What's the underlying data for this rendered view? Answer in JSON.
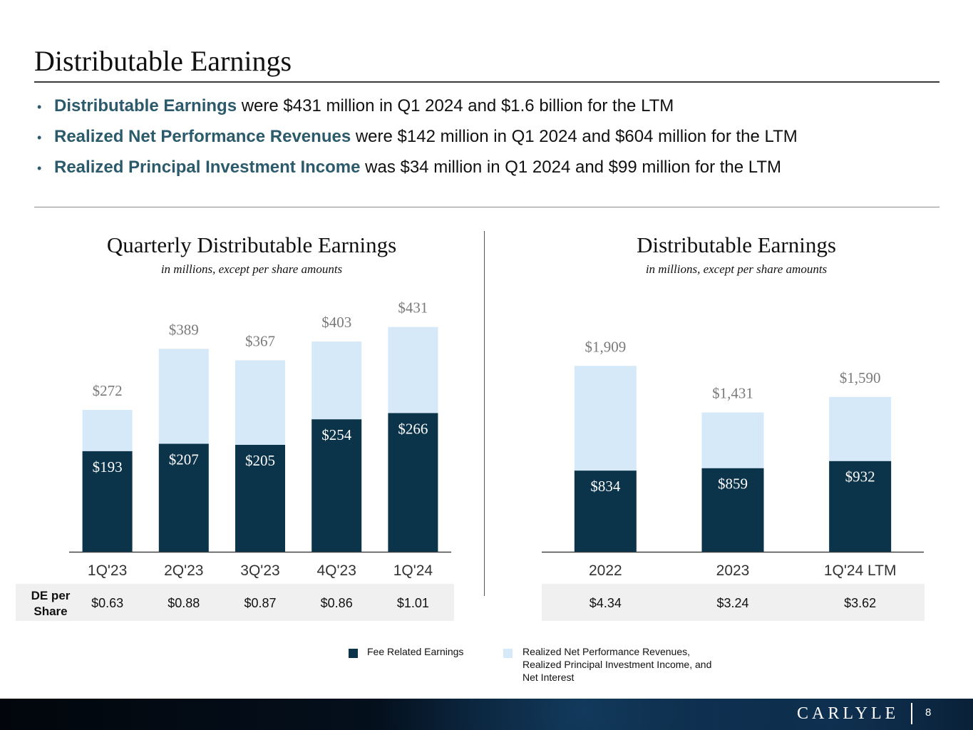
{
  "title": "Distributable Earnings",
  "bullets": [
    {
      "highlight": "Distributable Earnings",
      "text": " were $431 million in Q1 2024 and $1.6 billion for the LTM"
    },
    {
      "highlight": "Realized Net Performance Revenues",
      "text": " were $142 million in Q1 2024 and $604 million for the LTM"
    },
    {
      "highlight": "Realized Principal Investment Income",
      "text": " was $34 million in Q1 2024 and $99 million for the LTM"
    }
  ],
  "colors": {
    "fre": "#0b3349",
    "other": "#d6e9f8",
    "accent": "#2b5a6b",
    "total_label": "#7a7a7a"
  },
  "share_label": "DE per Share",
  "chart_data": [
    {
      "type": "bar",
      "stacked": true,
      "title": "Quarterly Distributable Earnings",
      "subtitle": "in millions, except per share amounts",
      "categories": [
        "1Q'23",
        "2Q'23",
        "3Q'23",
        "4Q'23",
        "1Q'24"
      ],
      "series": [
        {
          "name": "Fee Related Earnings",
          "values": [
            193,
            207,
            205,
            254,
            266
          ]
        },
        {
          "name": "Realized Net Performance Revenues, Realized Principal Investment Income, and Net Interest",
          "values": [
            79,
            182,
            162,
            149,
            165
          ]
        }
      ],
      "fre_labels": [
        "$193",
        "$207",
        "$205",
        "$254",
        "$266"
      ],
      "totals": [
        272,
        389,
        367,
        403,
        431
      ],
      "total_labels": [
        "$272",
        "$389",
        "$367",
        "$403",
        "$431"
      ],
      "de_per_share": [
        "$0.63",
        "$0.88",
        "$0.87",
        "$0.86",
        "$1.01"
      ],
      "ylim": [
        0,
        440
      ]
    },
    {
      "type": "bar",
      "stacked": true,
      "title": "Distributable Earnings",
      "subtitle": "in millions, except per share amounts",
      "categories": [
        "2022",
        "2023",
        "1Q'24 LTM"
      ],
      "series": [
        {
          "name": "Fee Related Earnings",
          "values": [
            834,
            859,
            932
          ]
        },
        {
          "name": "Realized Net Performance Revenues, Realized Principal Investment Income, and Net Interest",
          "values": [
            1075,
            572,
            658
          ]
        }
      ],
      "fre_labels": [
        "$834",
        "$859",
        "$932"
      ],
      "totals": [
        1909,
        1431,
        1590
      ],
      "total_labels": [
        "$1,909",
        "$1,431",
        "$1,590"
      ],
      "de_per_share": [
        "$4.34",
        "$3.24",
        "$3.62"
      ],
      "ylim": [
        0,
        2050
      ]
    }
  ],
  "legend": {
    "fre": "Fee Related Earnings",
    "other_lines": [
      "Realized Net Performance Revenues,",
      "Realized Principal Investment Income, and",
      "Net Interest"
    ]
  },
  "footer": {
    "logo": "CARLYLE",
    "page": "8"
  }
}
